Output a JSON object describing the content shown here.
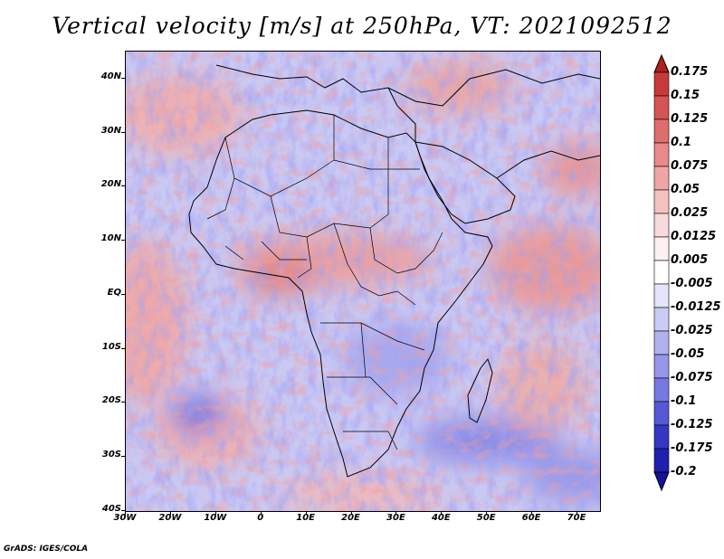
{
  "title": "Vertical velocity [m/s] at 250hPa, VT: 2021092512",
  "credit": "GrADS: IGES/COLA",
  "map": {
    "lat_labels": [
      "40N",
      "30N",
      "20N",
      "10N",
      "EQ",
      "10S",
      "20S",
      "30S",
      "40S"
    ],
    "lon_labels": [
      "30W",
      "20W",
      "10W",
      "0",
      "10E",
      "20E",
      "30E",
      "40E",
      "50E",
      "60E",
      "70E"
    ],
    "lat_values": [
      40,
      30,
      20,
      10,
      0,
      -10,
      -20,
      -30,
      -40
    ],
    "lon_values": [
      -30,
      -20,
      -10,
      0,
      10,
      20,
      30,
      40,
      50,
      60,
      70
    ],
    "lat_range": [
      -40,
      45
    ],
    "lon_range": [
      -30,
      75
    ]
  },
  "colorbar": {
    "labels": [
      "0.175",
      "0.15",
      "0.125",
      "0.1",
      "0.075",
      "0.05",
      "0.025",
      "0.0125",
      "0.005",
      "-0.005",
      "-0.0125",
      "-0.025",
      "-0.05",
      "-0.075",
      "-0.1",
      "-0.125",
      "-0.175",
      "-0.2"
    ],
    "colors": [
      "#b21f1f",
      "#c83a3a",
      "#d65454",
      "#e06d6d",
      "#e98989",
      "#f0a5a5",
      "#f5c2c2",
      "#f9dada",
      "#fdf0f0",
      "#ffffff",
      "#e4e4fb",
      "#cbcbf6",
      "#b1b1f0",
      "#9595ea",
      "#7878e2",
      "#5757d6",
      "#3636c6",
      "#1f1fb0",
      "#12129a"
    ]
  },
  "colors": {
    "red_strong": "#d94a4a",
    "red_light": "#f2b4b4",
    "blue_strong": "#6464e0",
    "blue_light": "#c6c6f4",
    "border": "#000000"
  }
}
